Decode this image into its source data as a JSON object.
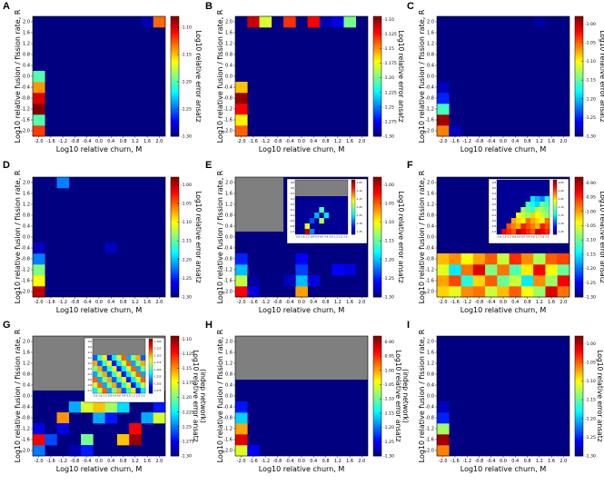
{
  "figure": {
    "axis_labels": {
      "x": "Log10 relative churn, M",
      "y": "Log10 relative fusion / fission rate, R"
    }
  },
  "chart_data": [
    {
      "type": "heatmap",
      "panel": "A",
      "x": [
        -2.0,
        -1.6,
        -1.2,
        -0.8,
        -0.4,
        0.0,
        0.4,
        0.8,
        1.2,
        1.6,
        2.0
      ],
      "y": [
        -2.0,
        -1.6,
        -1.2,
        -0.8,
        -0.4,
        0.0,
        0.4,
        0.8,
        1.2,
        1.6,
        2.0
      ],
      "xlabel": "Log10 relative churn, M",
      "ylabel": "Log10 relative fusion / fission rate, R",
      "colorbar": {
        "label": "Log10 relative error ansatz",
        "ticks": [
          -1.1,
          -1.15,
          -1.2,
          -1.25,
          -1.3
        ],
        "range": [
          -1.3,
          -1.08
        ]
      },
      "base": -1.3,
      "cells": [
        [
          0,
          0,
          -1.12
        ],
        [
          0,
          1,
          -1.2
        ],
        [
          0,
          2,
          -1.08
        ],
        [
          0,
          3,
          -1.1
        ],
        [
          0,
          4,
          -1.14
        ],
        [
          0,
          5,
          -1.2
        ],
        [
          9,
          10,
          -1.29
        ],
        [
          10,
          10,
          -1.13
        ]
      ]
    },
    {
      "type": "heatmap",
      "panel": "B",
      "x": [
        -2.0,
        -1.6,
        -1.2,
        -0.8,
        -0.4,
        0.0,
        0.4,
        0.8,
        1.2,
        1.6,
        2.0
      ],
      "y": [
        -2.0,
        -1.6,
        -1.2,
        -0.8,
        -0.4,
        0.0,
        0.4,
        0.8,
        1.2,
        1.6,
        2.0
      ],
      "xlabel": "Log10 relative churn, M",
      "ylabel": "Log10 relative fusion / fission rate, R",
      "colorbar": {
        "label": "Log10 relative error ansatz",
        "ticks": [
          -1.1,
          -1.125,
          -1.15,
          -1.175,
          -1.2,
          -1.225,
          -1.25,
          -1.275,
          -1.3
        ],
        "range": [
          -1.3,
          -1.095
        ]
      },
      "base": -1.3,
      "cells": [
        [
          0,
          0,
          -1.14
        ],
        [
          0,
          1,
          -1.17
        ],
        [
          0,
          2,
          -1.12
        ],
        [
          0,
          3,
          -1.1
        ],
        [
          0,
          4,
          -1.16
        ],
        [
          1,
          10,
          -1.11
        ],
        [
          2,
          10,
          -1.18
        ],
        [
          4,
          10,
          -1.13
        ],
        [
          6,
          10,
          -1.12
        ],
        [
          7,
          10,
          -1.29
        ],
        [
          8,
          10,
          -1.28
        ],
        [
          9,
          10,
          -1.2
        ]
      ]
    },
    {
      "type": "heatmap",
      "panel": "C",
      "x": [
        -2.0,
        -1.6,
        -1.2,
        -0.8,
        -0.4,
        0.0,
        0.4,
        0.8,
        1.2,
        1.6,
        2.0
      ],
      "y": [
        -2.0,
        -1.6,
        -1.2,
        -0.8,
        -0.4,
        0.0,
        0.4,
        0.8,
        1.2,
        1.6,
        2.0
      ],
      "xlabel": "Log10 relative churn, M",
      "ylabel": "Log10 relative fusion / fission rate, R",
      "colorbar": {
        "label": "Log10 relative error ansatz",
        "ticks": [
          -1.0,
          -1.05,
          -1.1,
          -1.15,
          -1.2,
          -1.25,
          -1.3
        ],
        "range": [
          -1.3,
          -0.98
        ]
      },
      "base": -1.3,
      "cells": [
        [
          0,
          0,
          -1.06
        ],
        [
          0,
          1,
          -0.99
        ],
        [
          0,
          2,
          -1.16
        ],
        [
          0,
          3,
          -1.25
        ],
        [
          0,
          4,
          -1.28
        ],
        [
          1,
          0,
          -1.28
        ],
        [
          8,
          10,
          -1.29
        ]
      ]
    },
    {
      "type": "heatmap",
      "panel": "D",
      "x": [
        -2.0,
        -1.6,
        -1.2,
        -0.8,
        -0.4,
        0.0,
        0.4,
        0.8,
        1.2,
        1.6,
        2.0
      ],
      "y": [
        -2.0,
        -1.6,
        -1.2,
        -0.8,
        -0.4,
        0.0,
        0.4,
        0.8,
        1.2,
        1.6,
        2.0
      ],
      "xlabel": "Log10 relative churn, M",
      "ylabel": "Log10 relative fusion / fission rate, R",
      "colorbar": {
        "label": "Log10 relative error ansatz",
        "ticks": [
          -1.0,
          -1.05,
          -1.1,
          -1.15,
          -1.2,
          -1.25,
          -1.3
        ],
        "range": [
          -1.3,
          -0.98
        ]
      },
      "base": -1.3,
      "cells": [
        [
          0,
          0,
          -1.0
        ],
        [
          0,
          1,
          -1.1
        ],
        [
          0,
          2,
          -1.14
        ],
        [
          0,
          3,
          -1.22
        ],
        [
          0,
          4,
          -1.28
        ],
        [
          2,
          10,
          -1.22
        ],
        [
          6,
          4,
          -1.28
        ]
      ]
    },
    {
      "type": "heatmap",
      "panel": "E",
      "x": [
        -2.0,
        -1.6,
        -1.2,
        -0.8,
        -0.4,
        0.0,
        0.4,
        0.8,
        1.2,
        1.6,
        2.0
      ],
      "y": [
        -2.0,
        -1.6,
        -1.2,
        -0.8,
        -0.4,
        0.0,
        0.4,
        0.8,
        1.2,
        1.6,
        2.0
      ],
      "xlabel": "Log10 relative churn, M",
      "ylabel": "Log10 relative fusion / fission rate, R",
      "colorbar": {
        "label": "Log10 relative error ansatz",
        "ticks": [
          -1.0,
          -1.05,
          -1.1,
          -1.15,
          -1.2,
          -1.25,
          -1.3
        ],
        "range": [
          -1.3,
          -0.98
        ]
      },
      "base": -1.3,
      "masked": {
        "rows_from": 6,
        "rows_to": 10,
        "cols_from": 0,
        "cols_to": 3
      },
      "cells": [
        [
          0,
          0,
          -1.02
        ],
        [
          0,
          1,
          -1.12
        ],
        [
          0,
          2,
          -1.2
        ],
        [
          0,
          3,
          -1.25
        ],
        [
          1,
          0,
          -1.27
        ],
        [
          1,
          1,
          -1.29
        ],
        [
          5,
          0,
          -1.07
        ],
        [
          5,
          1,
          -1.2
        ],
        [
          5,
          2,
          -1.24
        ],
        [
          5,
          3,
          -1.26
        ],
        [
          4,
          1,
          -1.28
        ],
        [
          6,
          1,
          -1.27
        ],
        [
          8,
          2,
          -1.26
        ],
        [
          9,
          2,
          -1.27
        ]
      ],
      "inset": {
        "y_ticks": [
          "0.8",
          "0.6",
          "0.4",
          "0.2",
          "0.0",
          "-0.2",
          "-0.4",
          "-0.6",
          "-0.8",
          "-1.0"
        ],
        "x_ticks": [
          "-2.0",
          "-1.6",
          "-1.2",
          "-0.8",
          "-0.4",
          "0.0",
          "0.4",
          "0.8",
          "1.2",
          "1.6",
          "2.0"
        ],
        "cb_ticks": [
          "-1.05",
          "-1.10",
          "-1.15",
          "-1.20",
          "-1.25",
          "-1.30",
          "-1.35"
        ]
      }
    },
    {
      "type": "heatmap",
      "panel": "F",
      "x": [
        -2.0,
        -1.6,
        -1.2,
        -0.8,
        -0.4,
        0.0,
        0.4,
        0.8,
        1.2,
        1.6,
        2.0
      ],
      "y": [
        -2.0,
        -1.6,
        -1.2,
        -0.8,
        -0.4,
        0.0,
        0.4,
        0.8,
        1.2,
        1.6,
        2.0
      ],
      "xlabel": "Log10 relative churn, M",
      "ylabel": "Log10 relative fusion / fission rate, R",
      "colorbar": {
        "label": "Log10 relative error ansatz",
        "ticks": [
          -0.9,
          -0.95,
          -1.0,
          -1.05,
          -1.1,
          -1.15,
          -1.2,
          -1.25,
          -1.3
        ],
        "range": [
          -1.3,
          -0.88
        ]
      },
      "base": -1.3,
      "dense_rows": {
        "0": [
          -1.02,
          -1.05,
          -0.99,
          -0.98,
          -1.06,
          -1.01,
          -0.97,
          -1.04,
          -1.08,
          -0.92,
          -0.98
        ],
        "1": [
          -1.0,
          -0.96,
          -1.13,
          -1.02,
          -0.97,
          -1.1,
          -1.06,
          -1.15,
          -0.99,
          -1.08,
          -0.93
        ],
        "2": [
          -1.05,
          -1.15,
          -0.98,
          -0.92,
          -1.09,
          -0.98,
          -1.11,
          -1.03,
          -0.93,
          -1.04,
          -1.1
        ],
        "3": [
          -1.01,
          -0.99,
          -1.04,
          -1.0,
          -0.97,
          -1.06,
          -0.95,
          -0.99,
          -1.07,
          -0.97,
          -0.96
        ]
      },
      "inset": {
        "y_ticks": [
          "0.8",
          "0.6",
          "0.4",
          "0.2",
          "0.0",
          "-0.2",
          "-0.4",
          "-0.6",
          "-0.8",
          "-1.0"
        ],
        "x_ticks": [
          "-2.0",
          "-1.6",
          "-1.2",
          "-0.8",
          "-0.4",
          "0.0",
          "0.4",
          "0.8",
          "1.2",
          "1.6",
          "2.0"
        ],
        "cb_ticks": [
          "-0.95",
          "-1.00",
          "-1.05",
          "-1.10",
          "-1.15",
          "-1.20",
          "-1.25"
        ]
      }
    },
    {
      "type": "heatmap",
      "panel": "G",
      "x": [
        -2.0,
        -1.6,
        -1.2,
        -0.8,
        -0.4,
        0.0,
        0.4,
        0.8,
        1.2,
        1.6,
        2.0
      ],
      "y": [
        -2.0,
        -1.6,
        -1.2,
        -0.8,
        -0.4,
        0.0,
        0.4,
        0.8,
        1.2,
        1.6,
        2.0
      ],
      "xlabel": "Log10 relative churn, M",
      "ylabel": "Log10 relative fusion / fission rate, R",
      "colorbar": {
        "label": "Log10 relative error ansatz (indep network)",
        "ticks": [
          -1.1,
          -1.125,
          -1.15,
          -1.175,
          -1.2,
          -1.225,
          -1.25,
          -1.275,
          -1.3
        ],
        "range": [
          -1.3,
          -1.095
        ]
      },
      "base": -1.3,
      "masked": {
        "rows_from": 6,
        "rows_to": 10,
        "cols_from": 0,
        "cols_to": 10
      },
      "cells": [
        [
          0,
          0,
          -1.25
        ],
        [
          0,
          1,
          -1.12
        ],
        [
          0,
          2,
          -1.28
        ],
        [
          1,
          1,
          -1.26
        ],
        [
          2,
          3,
          -1.15
        ],
        [
          2,
          2,
          -1.28
        ],
        [
          3,
          0,
          -1.29
        ],
        [
          3,
          4,
          -1.24
        ],
        [
          4,
          1,
          -1.2
        ],
        [
          4,
          0,
          -1.27
        ],
        [
          4,
          4,
          -1.18
        ],
        [
          5,
          3,
          -1.24
        ],
        [
          5,
          4,
          -1.16
        ],
        [
          6,
          3,
          -1.27
        ],
        [
          6,
          4,
          -1.19
        ],
        [
          7,
          1,
          -1.16
        ],
        [
          7,
          4,
          -1.23
        ],
        [
          8,
          1,
          -1.1
        ],
        [
          8,
          2,
          -1.12
        ],
        [
          9,
          3,
          -1.24
        ],
        [
          9,
          5,
          -1.28
        ],
        [
          10,
          3,
          -1.18
        ],
        [
          10,
          4,
          -1.27
        ]
      ],
      "inset": {
        "y_ticks": [
          "0.8",
          "0.6",
          "0.4",
          "0.2",
          "0.0",
          "-0.2",
          "-0.4",
          "-0.6",
          "-0.8",
          "-1.0"
        ],
        "x_ticks": [
          "-2.0",
          "-1.6",
          "-1.2",
          "-0.8",
          "-0.4",
          "0.0",
          "0.4",
          "0.8",
          "1.2",
          "1.6",
          "2.0"
        ],
        "cb_ticks": [
          "-1.100",
          "-1.125",
          "-1.150",
          "-1.175",
          "-1.200",
          "-1.225",
          "-1.250",
          "-1.275"
        ]
      }
    },
    {
      "type": "heatmap",
      "panel": "H",
      "x": [
        -2.0,
        -1.6,
        -1.2,
        -0.8,
        -0.4,
        0.0,
        0.4,
        0.8,
        1.2,
        1.6,
        2.0
      ],
      "y": [
        -2.0,
        -1.6,
        -1.2,
        -0.8,
        -0.4,
        0.0,
        0.4,
        0.8,
        1.2,
        1.6,
        2.0
      ],
      "xlabel": "Log10 relative churn, M",
      "ylabel": "Log10 relative fusion / fission rate, R",
      "colorbar": {
        "label": "Log10 relative error ansatz (indep network)",
        "ticks": [
          -0.9,
          -0.95,
          -1.0,
          -1.05,
          -1.1,
          -1.15,
          -1.2,
          -1.25,
          -1.3
        ],
        "range": [
          -1.3,
          -0.88
        ]
      },
      "base": -1.3,
      "masked": {
        "rows_from": 7,
        "rows_to": 10,
        "cols_from": 0,
        "cols_to": 10
      },
      "cells": [
        [
          0,
          0,
          -1.05
        ],
        [
          0,
          1,
          -0.92
        ],
        [
          0,
          2,
          -1.0
        ],
        [
          0,
          3,
          -1.16
        ],
        [
          0,
          4,
          -1.24
        ],
        [
          1,
          0,
          -1.25
        ]
      ]
    },
    {
      "type": "heatmap",
      "panel": "I",
      "x": [
        -2.0,
        -1.6,
        -1.2,
        -0.8,
        -0.4,
        0.0,
        0.4,
        0.8,
        1.2,
        1.6,
        2.0
      ],
      "y": [
        -2.0,
        -1.6,
        -1.2,
        -0.8,
        -0.4,
        0.0,
        0.4,
        0.8,
        1.2,
        1.6,
        2.0
      ],
      "xlabel": "Log10 relative churn, M",
      "ylabel": "Log10 relative fusion / fission rate, R",
      "colorbar": {
        "label": "Log10 relative error ansatz (indep network)",
        "ticks": [
          -1.0,
          -1.05,
          -1.1,
          -1.15,
          -1.2,
          -1.25,
          -1.3
        ],
        "range": [
          -1.3,
          -0.98
        ]
      },
      "base": -1.3,
      "cells": [
        [
          0,
          0,
          -1.06
        ],
        [
          0,
          1,
          -0.99
        ],
        [
          0,
          2,
          -1.13
        ],
        [
          0,
          3,
          -1.25
        ],
        [
          0,
          4,
          -1.28
        ]
      ]
    }
  ]
}
